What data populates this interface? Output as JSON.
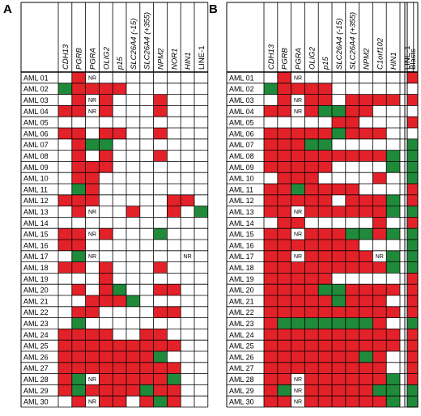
{
  "colors": {
    "methylated": "#e32129",
    "unmethylated": "#1f8a3a",
    "empty": "#ffffff",
    "grid": "#000000"
  },
  "nr_label": "NR",
  "rows": [
    "AML 01",
    "AML 02",
    "AML 03",
    "AML 04",
    "AML 05",
    "AML 06",
    "AML 07",
    "AML 08",
    "AML 09",
    "AML 10",
    "AML 11",
    "AML 12",
    "AML 13",
    "AML 14",
    "AML 15",
    "AML 16",
    "AML 17",
    "AML 18",
    "AML 19",
    "AML 20",
    "AML 21",
    "AML 22",
    "AML 23",
    "AML 24",
    "AML 25",
    "AML 26",
    "AML 27",
    "AML 28",
    "AML 29",
    "AML 30"
  ],
  "panels": [
    {
      "label": "A",
      "columns": [
        "CDH13",
        "PGRB",
        "PGRA",
        "OLIG2",
        "p15",
        "SLC26A4 (-15)",
        "SLC26A4 (+355)",
        "NPM2",
        "NOR1",
        "HIN1",
        "LINE-1"
      ],
      "cells": [
        "_RN________",
        "GRRRR______",
        "_RNR___R___",
        "RRNR___R___",
        "___________",
        "RR_RR__R___",
        "_RGG_______",
        "_R_R___R___",
        "_RRR_______",
        "_RR________",
        "_GR________",
        "RRR_____RR_",
        "_RN__R__R_G",
        "___________",
        "RRNR___G___",
        "RR_________",
        "_GN______N_",
        "RR_R___R___",
        "___R_______",
        "_R_RG__RR__",
        "__RRRG_____",
        "_RR____RR__",
        "_G_________",
        "RRRR__RR___",
        "RRRRRRRRR__",
        "RRRRRRRG___",
        "RRRRRRRRR__",
        "RGNRRRRRG__",
        "RGRRRRGRR__",
        "_RNRR_RGR__"
      ]
    },
    {
      "label": "B",
      "columns": [
        "CDH13",
        "PGRB",
        "PGRA",
        "OLIG2",
        "p15",
        "SLC26A4 (-15)",
        "SLC26A4 (+355)",
        "NPM2",
        "C1orf102",
        "HIN1",
        "LINE-1"
      ],
      "cells": [
        "_RN________",
        "GRRRR______",
        "_RNRR_RRRR_",
        "RRNRGGRR___",
        "_____RR____",
        "RRRRRGRRR__",
        "RRRGG______",
        "RRRRRRRRRG_",
        "RRRRR____G_",
        "_RRR____R__",
        "RRGRRRR____",
        "RRRRR_RRRG_",
        "RRNRRRRRRG_",
        "_RR_____R__",
        "RRNRRRGGRG_",
        "RRRRRRR____",
        "RRNRRRRRNG_",
        "RRRRRRRRRG_",
        "RRRRR______",
        "RRRRGGRRRR_",
        "RRRRRGRRR__",
        "RRRRRRRRRR_",
        "RGGGGGGGR__",
        "RRRRRRRRRR_",
        "RRRRRRRRRR_",
        "RRRRRRRGR__",
        "RRRRRRRRR__",
        "RRNRRRRRRG_",
        "RGNRRRRRGG_",
        "RRNRRRRRRG_"
      ]
    }
  ],
  "blasts": {
    "label": "Blasts",
    "cells": "R_R_R_GGGGRRGRGGGGRRRRGRRRRRGG"
  }
}
